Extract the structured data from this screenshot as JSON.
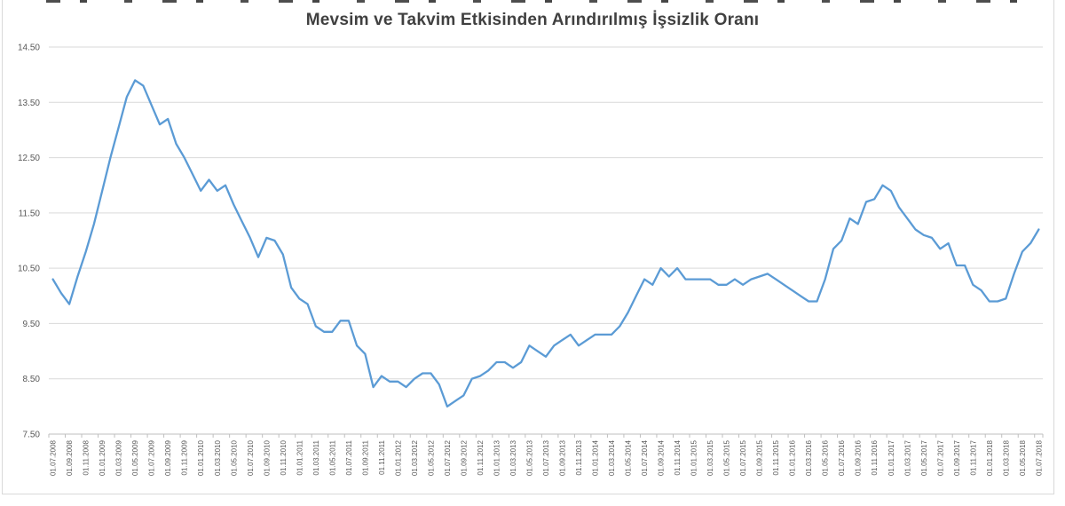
{
  "chart_data": {
    "type": "line",
    "title": "Mevsim ve Takvim Etkisinden Arındırılmış İşsizlik Oranı",
    "xlabel": "",
    "ylabel": "",
    "ylim": [
      7.5,
      14.5
    ],
    "y_tick_labels": [
      "14.50",
      "13.50",
      "12.50",
      "11.50",
      "10.50",
      "9.50",
      "8.50",
      "7.50"
    ],
    "grid": "horizontal",
    "legend": "none",
    "line_color": "#5b9bd5",
    "grid_color": "#d9d9d9",
    "axis_color": "#bfbfbf",
    "label_color": "#595959",
    "title_color": "#404040",
    "background_color": "#ffffff",
    "x_tick_labels": [
      "01.07.2008",
      "01.09.2008",
      "01.11.2008",
      "01.01.2009",
      "01.03.2009",
      "01.05.2009",
      "01.07.2009",
      "01.09.2009",
      "01.11.2009",
      "01.01.2010",
      "01.03.2010",
      "01.05.2010",
      "01.07.2010",
      "01.09.2010",
      "01.11.2010",
      "01.01.2011",
      "01.03.2011",
      "01.05.2011",
      "01.07.2011",
      "01.09.2011",
      "01.11.2011",
      "01.01.2012",
      "01.03.2012",
      "01.05.2012",
      "01.07.2012",
      "01.09.2012",
      "01.11.2012",
      "01.01.2013",
      "01.03.2013",
      "01.05.2013",
      "01.07.2013",
      "01.09.2013",
      "01.11.2013",
      "01.01.2014",
      "01.03.2014",
      "01.05.2014",
      "01.07.2014",
      "01.09.2014",
      "01.11.2014",
      "01.01.2015",
      "01.03.2015",
      "01.05.2015",
      "01.07.2015",
      "01.09.2015",
      "01.11.2015",
      "01.01.2016",
      "01.03.2016",
      "01.05.2016",
      "01.07.2016",
      "01.09.2016",
      "01.11.2016",
      "01.01.2017",
      "01.03.2017",
      "01.05.2017",
      "01.07.2017",
      "01.09.2017",
      "01.11.2017",
      "01.01.2018",
      "01.03.2018",
      "01.05.2018",
      "01.07.2018"
    ],
    "x_period": "monthly from 01.07.2008 to 01.07.2018, labels every 2 months",
    "values": [
      10.3,
      10.05,
      9.85,
      10.35,
      10.8,
      11.3,
      11.9,
      12.5,
      13.05,
      13.6,
      13.9,
      13.8,
      13.45,
      13.1,
      13.2,
      12.75,
      12.5,
      12.2,
      11.9,
      12.1,
      11.9,
      12.0,
      11.65,
      11.35,
      11.05,
      10.7,
      11.05,
      11.0,
      10.75,
      10.15,
      9.95,
      9.85,
      9.45,
      9.35,
      9.35,
      9.55,
      9.55,
      9.1,
      8.95,
      8.35,
      8.55,
      8.45,
      8.45,
      8.35,
      8.5,
      8.6,
      8.6,
      8.4,
      8.0,
      8.1,
      8.2,
      8.5,
      8.55,
      8.65,
      8.8,
      8.8,
      8.7,
      8.8,
      9.1,
      9.0,
      8.9,
      9.1,
      9.2,
      9.3,
      9.1,
      9.2,
      9.3,
      9.3,
      9.3,
      9.45,
      9.7,
      10.0,
      10.3,
      10.2,
      10.5,
      10.35,
      10.5,
      10.3,
      10.3,
      10.3,
      10.3,
      10.2,
      10.2,
      10.3,
      10.2,
      10.3,
      10.35,
      10.4,
      10.3,
      10.2,
      10.1,
      10.0,
      9.9,
      9.9,
      10.3,
      10.85,
      11.0,
      11.4,
      11.3,
      11.7,
      11.75,
      12.0,
      11.9,
      11.6,
      11.4,
      11.2,
      11.1,
      11.05,
      10.85,
      10.95,
      10.55,
      10.55,
      10.2,
      10.1,
      9.9,
      9.9,
      9.95,
      10.4,
      10.8,
      10.95,
      11.2
    ]
  }
}
